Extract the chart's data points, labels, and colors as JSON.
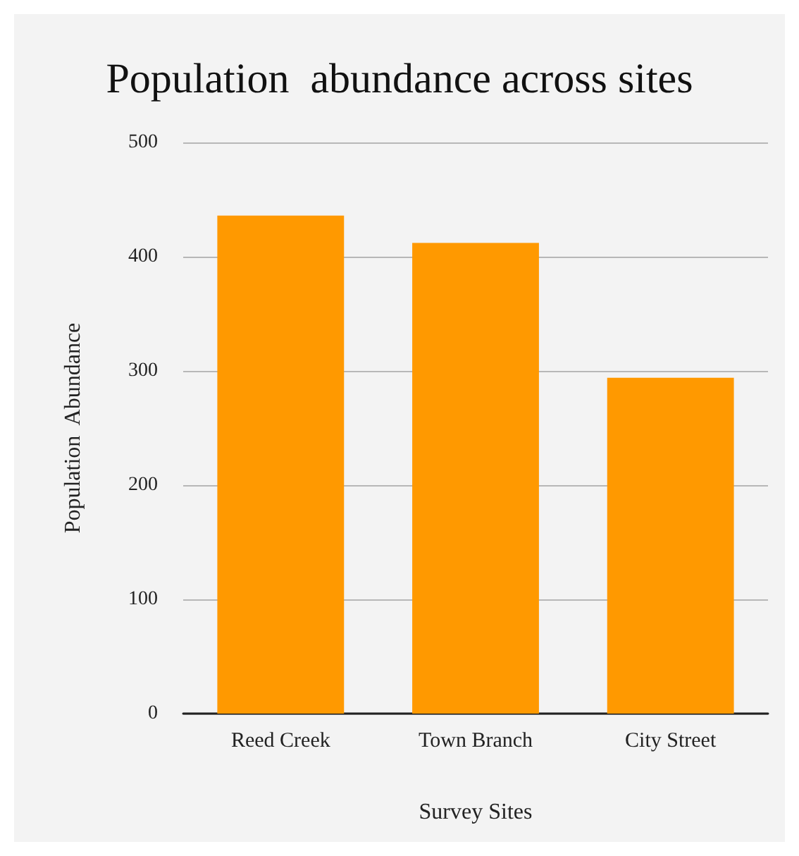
{
  "chart_data": {
    "type": "bar",
    "title": "Population  abundance across sites",
    "xlabel": "Survey Sites",
    "ylabel": "Population  Abundance",
    "categories": [
      "Reed Creek",
      "Town Branch",
      "City Street"
    ],
    "values": [
      436,
      412,
      294
    ],
    "color": "#ff9900",
    "ylim": [
      0,
      500
    ],
    "yticks": [
      0,
      100,
      200,
      300,
      400,
      500
    ],
    "grid": "y"
  }
}
